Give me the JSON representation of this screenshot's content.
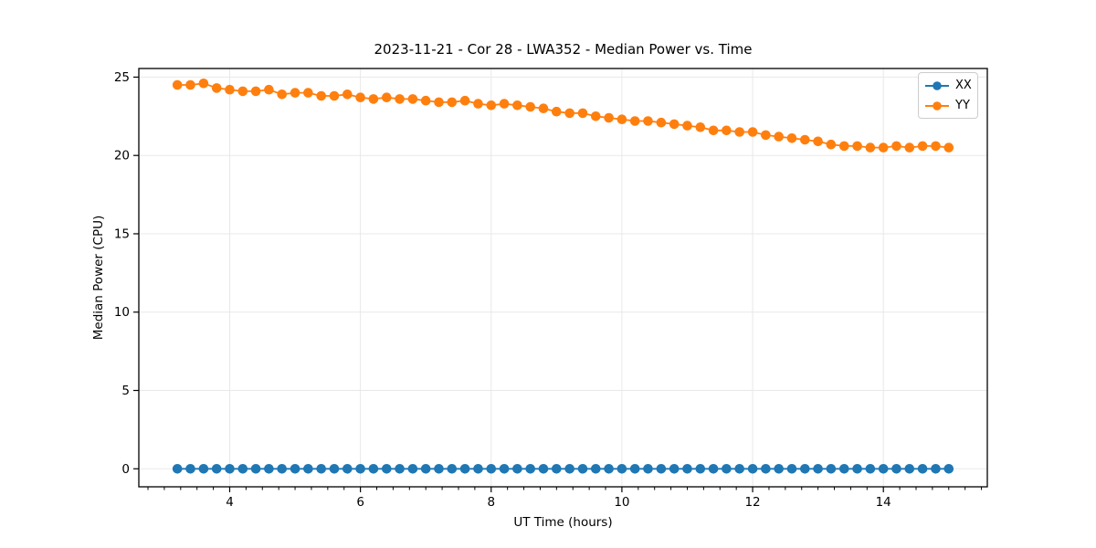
{
  "chart_data": {
    "type": "line",
    "title": "2023-11-21 - Cor 28 - LWA352 - Median Power vs. Time",
    "xlabel": "UT Time (hours)",
    "ylabel": "Median Power (CPU)",
    "xlim": [
      2.61,
      15.59
    ],
    "ylim": [
      -1.15,
      25.55
    ],
    "xticks": [
      4,
      6,
      8,
      10,
      12,
      14
    ],
    "yticks": [
      0,
      5,
      10,
      15,
      20,
      25
    ],
    "minor_xtick_step": 0.25,
    "grid": true,
    "legend_position": "upper right",
    "x": [
      3.2,
      3.4,
      3.6,
      3.8,
      4.0,
      4.2,
      4.4,
      4.6,
      4.8,
      5.0,
      5.2,
      5.4,
      5.6,
      5.8,
      6.0,
      6.2,
      6.4,
      6.6,
      6.8,
      7.0,
      7.2,
      7.4,
      7.6,
      7.8,
      8.0,
      8.2,
      8.4,
      8.6,
      8.8,
      9.0,
      9.2,
      9.4,
      9.6,
      9.8,
      10.0,
      10.2,
      10.4,
      10.6,
      10.8,
      11.0,
      11.2,
      11.4,
      11.6,
      11.8,
      12.0,
      12.2,
      12.4,
      12.6,
      12.8,
      13.0,
      13.2,
      13.4,
      13.6,
      13.8,
      14.0,
      14.2,
      14.4,
      14.6,
      14.8,
      15.0
    ],
    "series": [
      {
        "name": "XX",
        "color": "#1f77b4",
        "values": [
          0,
          0,
          0,
          0,
          0,
          0,
          0,
          0,
          0,
          0,
          0,
          0,
          0,
          0,
          0,
          0,
          0,
          0,
          0,
          0,
          0,
          0,
          0,
          0,
          0,
          0,
          0,
          0,
          0,
          0,
          0,
          0,
          0,
          0,
          0,
          0,
          0,
          0,
          0,
          0,
          0,
          0,
          0,
          0,
          0,
          0,
          0,
          0,
          0,
          0,
          0,
          0,
          0,
          0,
          0,
          0,
          0,
          0,
          0,
          0
        ]
      },
      {
        "name": "YY",
        "color": "#ff7f0e",
        "values": [
          24.5,
          24.5,
          24.6,
          24.3,
          24.2,
          24.1,
          24.1,
          24.2,
          23.9,
          24.0,
          24.0,
          23.8,
          23.8,
          23.9,
          23.7,
          23.6,
          23.7,
          23.6,
          23.6,
          23.5,
          23.4,
          23.4,
          23.5,
          23.3,
          23.2,
          23.3,
          23.2,
          23.1,
          23.0,
          22.8,
          22.7,
          22.7,
          22.5,
          22.4,
          22.3,
          22.2,
          22.2,
          22.1,
          22.0,
          21.9,
          21.8,
          21.6,
          21.6,
          21.5,
          21.5,
          21.3,
          21.2,
          21.1,
          21.0,
          20.9,
          20.7,
          20.6,
          20.6,
          20.5,
          20.5,
          20.6,
          20.5,
          20.6,
          20.6,
          20.5
        ]
      }
    ]
  },
  "colors": {
    "grid": "#e8e8e8",
    "spine": "#000000",
    "background": "#ffffff",
    "tick_label": "#000000"
  }
}
